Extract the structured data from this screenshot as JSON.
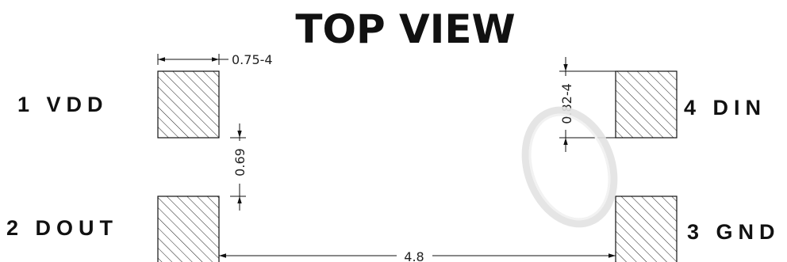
{
  "title": "TOP VIEW",
  "pins": {
    "p1": "1 VDD",
    "p2": "2 DOUT",
    "p3": "3 GND",
    "p4": "4 DIN"
  },
  "dimensions": {
    "pad_width": "0.75-4",
    "pad_height": "0.82-4",
    "pad_gap": "0.69",
    "pad_spacing": "4.8"
  }
}
